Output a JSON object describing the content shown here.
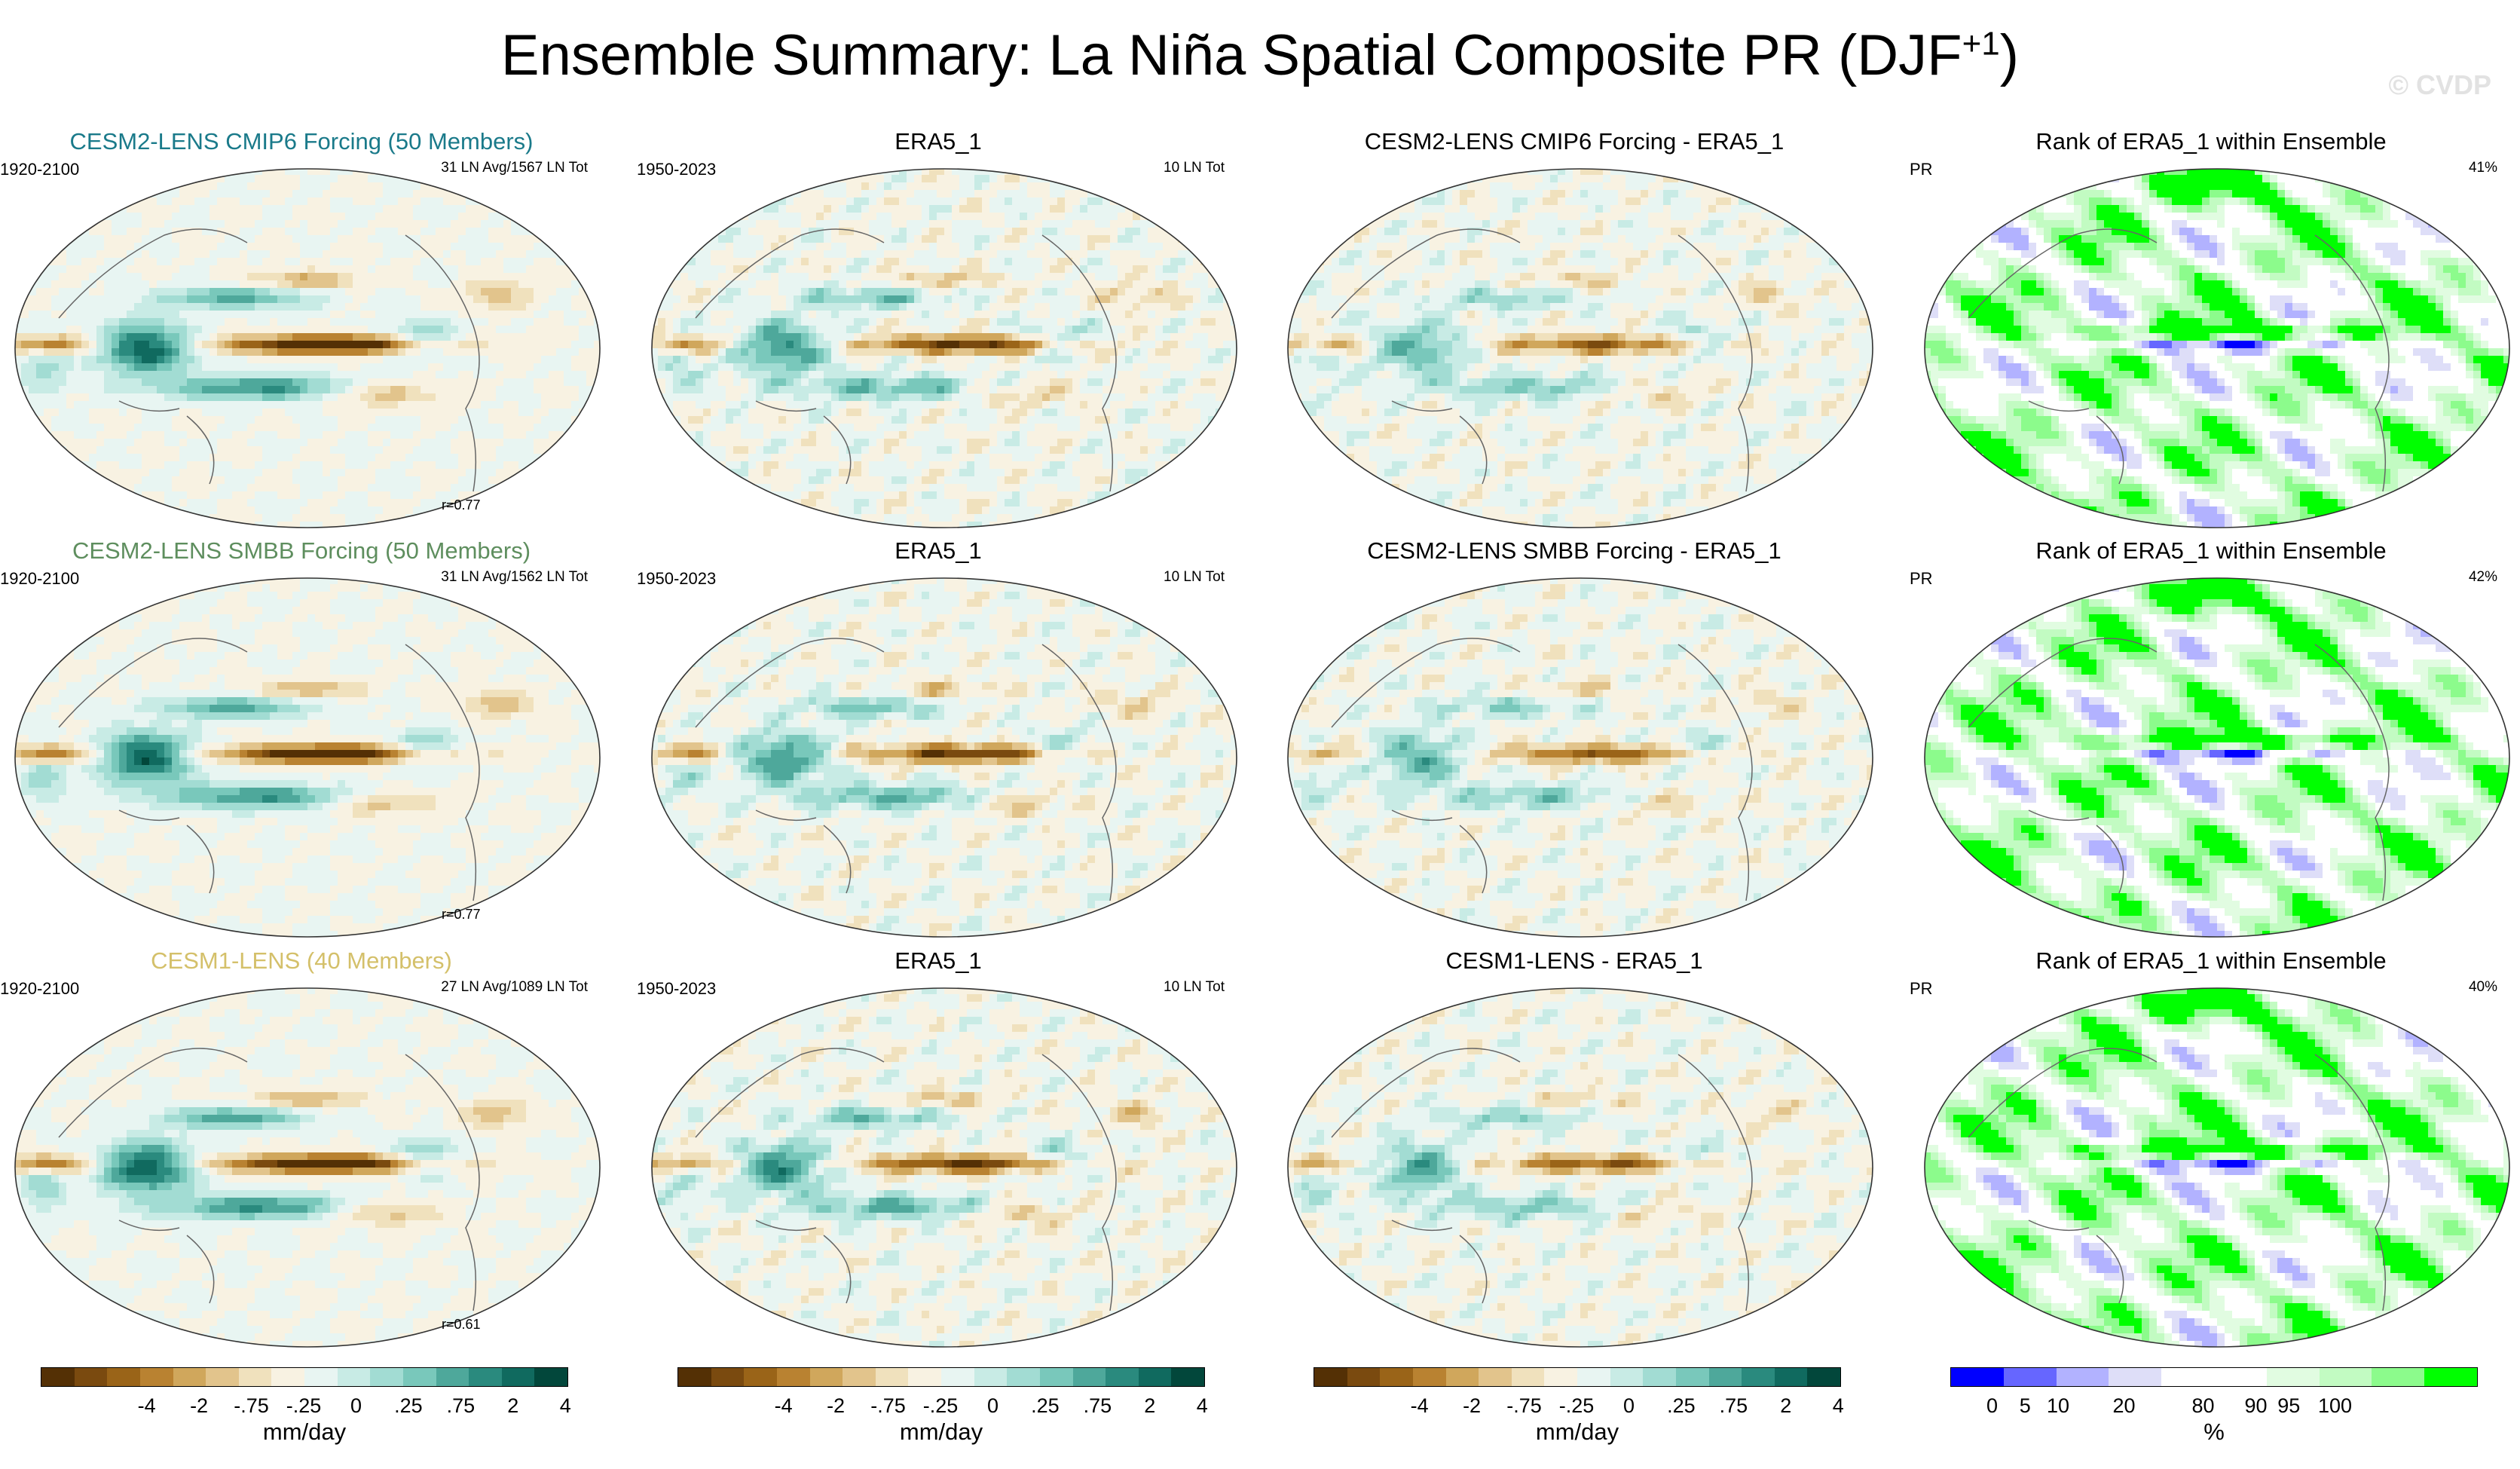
{
  "figure": {
    "title": "Ensemble Summary: La Niña Spatial Composite PR (DJF",
    "title_sup": "+1",
    "title_end": ")",
    "watermark": "© CVDP"
  },
  "palettes": {
    "brbg": [
      "#543005",
      "#7a4a0f",
      "#9a6418",
      "#b98231",
      "#d0a75c",
      "#e2c48c",
      "#f0e1bd",
      "#f8f2e2",
      "#e8f5f2",
      "#c8ebe5",
      "#a2dcd3",
      "#79c8bb",
      "#4ea89b",
      "#2a8a7e",
      "#106a5f",
      "#02473b"
    ],
    "rank": [
      "#0000ff",
      "#6666ff",
      "#b2b2ff",
      "#dedef8",
      "#ffffff",
      "#ffffff",
      "#e1fce1",
      "#c2fbc2",
      "#8cfb8c",
      "#00ff00"
    ]
  },
  "colorbars": {
    "diverging": {
      "ticks": [
        "-4",
        "-2",
        "-.75",
        "-.25",
        "0",
        ".25",
        ".75",
        "2",
        "4"
      ],
      "unit": "mm/day"
    },
    "rank": {
      "ticks": [
        "0",
        "5",
        "10",
        "20",
        "80",
        "90",
        "95",
        "100"
      ],
      "unit": "%"
    }
  },
  "chart_data": [
    {
      "type": "heatmap",
      "row": 1,
      "col": 1,
      "title": "CESM2-LENS CMIP6 Forcing (50 Members)",
      "title_color": "#1a7a8a",
      "left_label": "1920-2100",
      "right_label": "31 LN Avg/1567 LN Tot",
      "corr_label": "r=0.77",
      "variable": "pr",
      "units": "mm/day",
      "pattern": "model"
    },
    {
      "type": "heatmap",
      "row": 1,
      "col": 2,
      "title": "ERA5_1",
      "left_label": "1950-2023",
      "right_label": "10 LN Tot",
      "corr_label": "",
      "variable": "pr",
      "units": "mm/day",
      "pattern": "obs"
    },
    {
      "type": "heatmap",
      "row": 1,
      "col": 3,
      "title": "CESM2-LENS CMIP6 Forcing - ERA5_1",
      "left_label": "",
      "right_label": "",
      "corr_label": "",
      "variable": "pr",
      "units": "mm/day",
      "pattern": "diff"
    },
    {
      "type": "heatmap",
      "row": 1,
      "col": 4,
      "title": "Rank of ERA5_1 within Ensemble",
      "left_label": "PR",
      "right_label": "41%",
      "corr_label": "",
      "variable": "pr rank",
      "units": "%",
      "pattern": "rank"
    },
    {
      "type": "heatmap",
      "row": 2,
      "col": 1,
      "title": "CESM2-LENS SMBB Forcing (50 Members)",
      "title_color": "#5e8e5e",
      "left_label": "1920-2100",
      "right_label": "31 LN Avg/1562 LN Tot",
      "corr_label": "r=0.77",
      "variable": "pr",
      "units": "mm/day",
      "pattern": "model"
    },
    {
      "type": "heatmap",
      "row": 2,
      "col": 2,
      "title": "ERA5_1",
      "left_label": "1950-2023",
      "right_label": "10 LN Tot",
      "corr_label": "",
      "variable": "pr",
      "units": "mm/day",
      "pattern": "obs"
    },
    {
      "type": "heatmap",
      "row": 2,
      "col": 3,
      "title": "CESM2-LENS SMBB Forcing - ERA5_1",
      "left_label": "",
      "right_label": "",
      "corr_label": "",
      "variable": "pr",
      "units": "mm/day",
      "pattern": "diff"
    },
    {
      "type": "heatmap",
      "row": 2,
      "col": 4,
      "title": "Rank of ERA5_1 within Ensemble",
      "left_label": "PR",
      "right_label": "42%",
      "corr_label": "",
      "variable": "pr rank",
      "units": "%",
      "pattern": "rank"
    },
    {
      "type": "heatmap",
      "row": 3,
      "col": 1,
      "title": "CESM1-LENS (40 Members)",
      "title_color": "#d4c06a",
      "left_label": "1920-2100",
      "right_label": "27 LN Avg/1089 LN Tot",
      "corr_label": "r=0.61",
      "variable": "pr",
      "units": "mm/day",
      "pattern": "model"
    },
    {
      "type": "heatmap",
      "row": 3,
      "col": 2,
      "title": "ERA5_1",
      "left_label": "1950-2023",
      "right_label": "10 LN Tot",
      "corr_label": "",
      "variable": "pr",
      "units": "mm/day",
      "pattern": "obs"
    },
    {
      "type": "heatmap",
      "row": 3,
      "col": 3,
      "title": "CESM1-LENS - ERA5_1",
      "left_label": "",
      "right_label": "",
      "corr_label": "",
      "variable": "pr",
      "units": "mm/day",
      "pattern": "diff"
    },
    {
      "type": "heatmap",
      "row": 3,
      "col": 4,
      "title": "Rank of ERA5_1 within Ensemble",
      "left_label": "PR",
      "right_label": "40%",
      "corr_label": "",
      "variable": "pr rank",
      "units": "%",
      "pattern": "rank"
    }
  ]
}
